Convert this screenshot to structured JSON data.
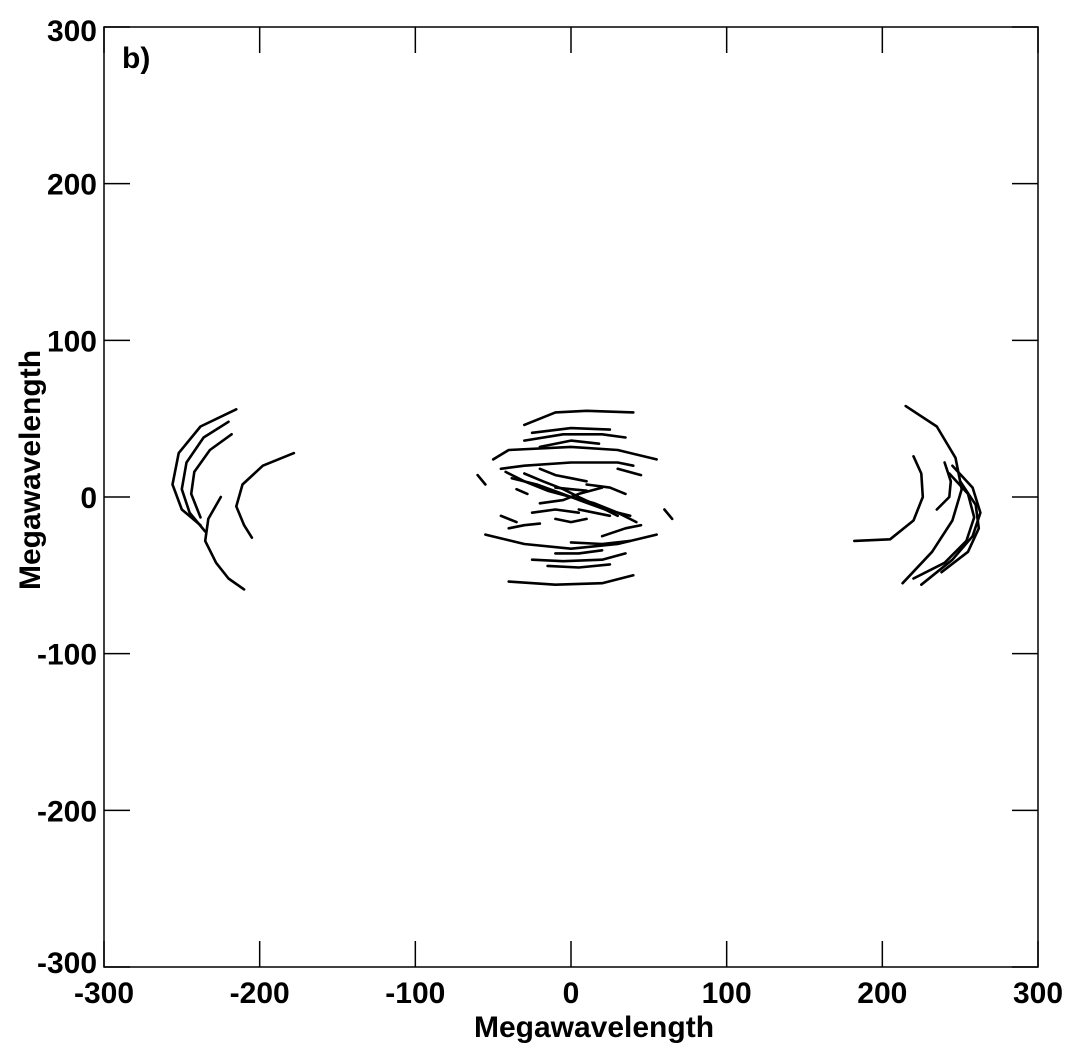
{
  "chart_data": {
    "type": "scatter",
    "panel_label": "b)",
    "xlabel": "Megawavelength",
    "ylabel": "Megawavelength",
    "xlim": [
      -300,
      300
    ],
    "ylim": [
      -300,
      300
    ],
    "xticks": [
      -300,
      -200,
      -100,
      0,
      100,
      200,
      300
    ],
    "yticks": [
      -300,
      -200,
      -100,
      0,
      100,
      200,
      300
    ],
    "xtick_labels": [
      "-300",
      "-200",
      "-100",
      "0",
      "100",
      "200",
      "300"
    ],
    "ytick_labels": [
      "-300",
      "-200",
      "-100",
      "0",
      "100",
      "200",
      "300"
    ],
    "grid": false,
    "color": "#000000",
    "series": [
      {
        "tracks": [
          [
            [
              -215,
              56
            ],
            [
              -238,
              45
            ],
            [
              -252,
              28
            ],
            [
              -256,
              8
            ],
            [
              -250,
              -8
            ],
            [
              -238,
              -18
            ]
          ],
          [
            [
              -220,
              48
            ],
            [
              -236,
              38
            ],
            [
              -247,
              22
            ],
            [
              -250,
              5
            ],
            [
              -245,
              -10
            ],
            [
              -235,
              -22
            ]
          ],
          [
            [
              -218,
              40
            ],
            [
              -232,
              30
            ],
            [
              -242,
              16
            ],
            [
              -244,
              2
            ],
            [
              -238,
              -13
            ]
          ],
          [
            [
              -178,
              28
            ],
            [
              -198,
              20
            ],
            [
              -211,
              8
            ],
            [
              -215,
              -6
            ],
            [
              -210,
              -18
            ],
            [
              -205,
              -26
            ]
          ],
          [
            [
              -225,
              0
            ],
            [
              -233,
              -14
            ],
            [
              -235,
              -28
            ],
            [
              -228,
              -42
            ],
            [
              -220,
              -52
            ],
            [
              -210,
              -59
            ]
          ],
          [
            [
              215,
              58
            ],
            [
              235,
              45
            ],
            [
              247,
              25
            ],
            [
              251,
              5
            ],
            [
              245,
              -15
            ],
            [
              232,
              -35
            ],
            [
              213,
              -55
            ]
          ],
          [
            [
              220,
              26
            ],
            [
              225,
              15
            ],
            [
              226,
              0
            ],
            [
              220,
              -15
            ],
            [
              205,
              -27
            ],
            [
              182,
              -28
            ]
          ],
          [
            [
              245,
              20
            ],
            [
              258,
              6
            ],
            [
              263,
              -10
            ],
            [
              258,
              -25
            ],
            [
              245,
              -40
            ],
            [
              225,
              -56
            ]
          ],
          [
            [
              243,
              15
            ],
            [
              255,
              2
            ],
            [
              259,
              -13
            ],
            [
              254,
              -28
            ],
            [
              240,
              -42
            ],
            [
              220,
              -52
            ]
          ],
          [
            [
              250,
              10
            ],
            [
              260,
              -5
            ],
            [
              262,
              -20
            ],
            [
              255,
              -35
            ],
            [
              238,
              -48
            ]
          ],
          [
            [
              240,
              22
            ],
            [
              244,
              10
            ],
            [
              243,
              0
            ],
            [
              235,
              -8
            ]
          ],
          [
            [
              -30,
              46
            ],
            [
              -10,
              54
            ],
            [
              10,
              55
            ],
            [
              40,
              54
            ]
          ],
          [
            [
              -25,
              41
            ],
            [
              0,
              44
            ],
            [
              25,
              43
            ]
          ],
          [
            [
              -30,
              36
            ],
            [
              -5,
              40
            ],
            [
              20,
              40
            ],
            [
              35,
              38
            ]
          ],
          [
            [
              -20,
              32
            ],
            [
              0,
              36
            ],
            [
              18,
              34
            ]
          ],
          [
            [
              -50,
              24
            ],
            [
              -40,
              30
            ],
            [
              0,
              32
            ],
            [
              30,
              30
            ],
            [
              55,
              24
            ]
          ],
          [
            [
              -45,
              18
            ],
            [
              -30,
              20
            ],
            [
              0,
              22
            ],
            [
              30,
              22
            ],
            [
              40,
              20
            ]
          ],
          [
            [
              -60,
              14
            ],
            [
              -55,
              8
            ]
          ],
          [
            [
              -42,
              16
            ],
            [
              -30,
              10
            ],
            [
              -15,
              4
            ],
            [
              0,
              0
            ],
            [
              15,
              -4
            ],
            [
              30,
              -10
            ],
            [
              42,
              -16
            ]
          ],
          [
            [
              -38,
              12
            ],
            [
              -22,
              8
            ],
            [
              -8,
              3
            ],
            [
              8,
              -3
            ],
            [
              22,
              -8
            ],
            [
              38,
              -12
            ]
          ],
          [
            [
              -30,
              15
            ],
            [
              -18,
              10
            ],
            [
              -5,
              5
            ],
            [
              5,
              0
            ],
            [
              18,
              -6
            ],
            [
              30,
              -12
            ]
          ],
          [
            [
              -20,
              18
            ],
            [
              -10,
              14
            ],
            [
              0,
              12
            ],
            [
              10,
              10
            ]
          ],
          [
            [
              -10,
              6
            ],
            [
              0,
              5
            ],
            [
              10,
              4
            ]
          ],
          [
            [
              5,
              -8
            ],
            [
              15,
              -10
            ],
            [
              25,
              -12
            ]
          ],
          [
            [
              -25,
              -10
            ],
            [
              -10,
              -8
            ],
            [
              5,
              -10
            ]
          ],
          [
            [
              -10,
              -14
            ],
            [
              0,
              -16
            ],
            [
              10,
              -14
            ]
          ],
          [
            [
              30,
              18
            ],
            [
              45,
              14
            ]
          ],
          [
            [
              -45,
              -12
            ],
            [
              -35,
              -16
            ]
          ],
          [
            [
              -40,
              -20
            ],
            [
              -30,
              -18
            ],
            [
              -20,
              -17
            ]
          ],
          [
            [
              -55,
              -24
            ],
            [
              -30,
              -30
            ],
            [
              0,
              -33
            ],
            [
              30,
              -30
            ],
            [
              55,
              -24
            ]
          ],
          [
            [
              -25,
              -40
            ],
            [
              -5,
              -41
            ],
            [
              20,
              -40
            ],
            [
              35,
              -36
            ]
          ],
          [
            [
              -15,
              -44
            ],
            [
              5,
              -45
            ],
            [
              25,
              -43
            ]
          ],
          [
            [
              -10,
              -36
            ],
            [
              5,
              -36
            ],
            [
              20,
              -34
            ]
          ],
          [
            [
              0,
              -29
            ],
            [
              20,
              -30
            ],
            [
              38,
              -28
            ]
          ],
          [
            [
              20,
              -25
            ],
            [
              35,
              -20
            ],
            [
              45,
              -18
            ]
          ],
          [
            [
              -40,
              -54
            ],
            [
              -10,
              -56
            ],
            [
              20,
              -55
            ],
            [
              40,
              -50
            ]
          ],
          [
            [
              60,
              -8
            ],
            [
              65,
              -14
            ]
          ],
          [
            [
              -20,
              -4
            ],
            [
              -5,
              -2
            ],
            [
              5,
              2
            ],
            [
              20,
              6
            ]
          ],
          [
            [
              10,
              8
            ],
            [
              25,
              6
            ],
            [
              35,
              2
            ]
          ],
          [
            [
              -35,
              5
            ],
            [
              -28,
              2
            ]
          ]
        ]
      }
    ]
  }
}
